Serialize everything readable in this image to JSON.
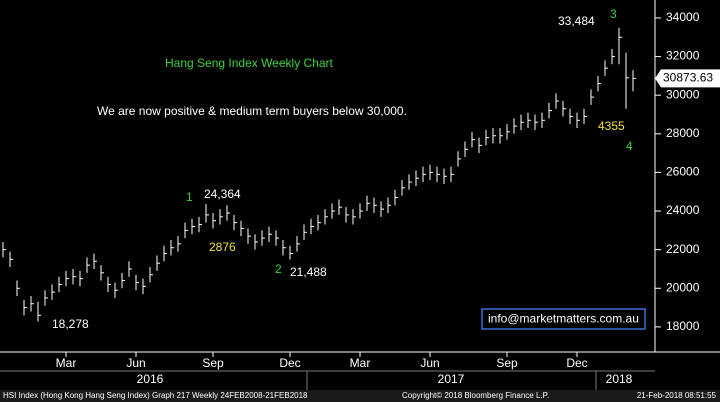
{
  "chart_data": {
    "type": "ohlc",
    "categories": [
      null,
      null,
      null,
      null,
      null,
      null,
      null,
      null,
      null,
      "Mar",
      null,
      null,
      null,
      null,
      null,
      null,
      null,
      null,
      null,
      "Jun",
      null,
      null,
      null,
      null,
      null,
      null,
      null,
      null,
      null,
      null,
      "Sep",
      null,
      null,
      null,
      null,
      null,
      null,
      null,
      null,
      null,
      null,
      "Dec",
      null,
      null,
      null,
      null,
      null,
      null,
      null,
      null,
      null,
      "Mar",
      null,
      null,
      null,
      null,
      null,
      null,
      null,
      null,
      null,
      "Jun",
      null,
      null,
      null,
      null,
      null,
      null,
      null,
      null,
      null,
      null,
      "Sep",
      null,
      null,
      null,
      null,
      null,
      null,
      null,
      null,
      null,
      "Dec",
      null,
      null,
      null,
      null,
      null,
      null,
      null,
      null
    ],
    "year_categories": [
      null,
      null,
      null,
      null,
      null,
      null,
      null,
      null,
      null,
      null,
      null,
      null,
      null,
      null,
      null,
      null,
      null,
      null,
      null,
      null,
      null,
      "2016",
      null,
      null,
      null,
      null,
      null,
      null,
      null,
      null,
      null,
      null,
      null,
      null,
      null,
      null,
      null,
      null,
      null,
      null,
      null,
      null,
      null,
      null,
      null,
      null,
      null,
      null,
      null,
      null,
      null,
      null,
      null,
      null,
      null,
      null,
      null,
      null,
      null,
      null,
      null,
      null,
      null,
      null,
      "2017",
      null,
      null,
      null,
      null,
      null,
      null,
      null,
      null,
      null,
      null,
      null,
      null,
      null,
      null,
      null,
      null,
      null,
      null,
      null,
      null,
      null,
      null,
      null,
      "2018",
      null,
      null
    ],
    "high": [
      22400,
      21900,
      20400,
      19400,
      19600,
      19300,
      19900,
      20200,
      20600,
      20900,
      21000,
      20900,
      21600,
      21800,
      21200,
      20600,
      20300,
      20800,
      21400,
      20700,
      20500,
      21100,
      21700,
      22200,
      22500,
      22700,
      23400,
      23600,
      23700,
      24364,
      23900,
      24100,
      24300,
      23800,
      23500,
      23100,
      22800,
      23000,
      23200,
      23000,
      22500,
      22200,
      22700,
      23300,
      23600,
      23800,
      24100,
      24400,
      24600,
      24200,
      24100,
      24400,
      24800,
      24700,
      24500,
      24700,
      25100,
      25600,
      25900,
      26100,
      26300,
      26400,
      26300,
      26200,
      26300,
      27100,
      27600,
      28100,
      27800,
      28200,
      28300,
      28300,
      28500,
      28800,
      29000,
      29100,
      29000,
      29100,
      29600,
      30100,
      29700,
      29300,
      29100,
      29300,
      30300,
      31000,
      31800,
      32400,
      33484,
      32200,
      31300
    ],
    "low": [
      21600,
      21100,
      19600,
      18600,
      18800,
      18278,
      19100,
      19400,
      19800,
      20100,
      20200,
      20100,
      20800,
      21000,
      20400,
      19800,
      19500,
      20000,
      20600,
      19900,
      19700,
      20300,
      20900,
      21400,
      21700,
      21900,
      22600,
      22800,
      22900,
      23400,
      23100,
      23300,
      23500,
      23000,
      22700,
      22300,
      22000,
      22200,
      22400,
      22200,
      21700,
      21488,
      21900,
      22500,
      22800,
      23000,
      23300,
      23600,
      23800,
      23400,
      23300,
      23600,
      24000,
      23900,
      23700,
      23900,
      24300,
      24800,
      25100,
      25300,
      25500,
      25600,
      25500,
      25400,
      25500,
      26300,
      26800,
      27300,
      27000,
      27400,
      27500,
      27500,
      27700,
      28000,
      28200,
      28300,
      28200,
      28300,
      28800,
      29300,
      28900,
      28500,
      28300,
      28500,
      29500,
      30200,
      31000,
      31600,
      31600,
      29300,
      30200
    ],
    "close": [
      22000,
      21500,
      20000,
      19000,
      19200,
      18600,
      19500,
      19800,
      20200,
      20500,
      20600,
      20500,
      21200,
      21400,
      20800,
      20200,
      19900,
      20400,
      21000,
      20300,
      20100,
      20700,
      21300,
      21800,
      22100,
      22300,
      23000,
      23200,
      23300,
      23800,
      23500,
      23700,
      23900,
      23400,
      23100,
      22700,
      22400,
      22600,
      22800,
      22600,
      22100,
      21800,
      22300,
      22900,
      23200,
      23400,
      23700,
      24000,
      24200,
      23800,
      23700,
      24000,
      24400,
      24300,
      24100,
      24300,
      24700,
      25200,
      25500,
      25700,
      25900,
      26000,
      25900,
      25800,
      25900,
      26700,
      27200,
      27700,
      27400,
      27800,
      27900,
      27900,
      28100,
      28400,
      28600,
      28700,
      28600,
      28700,
      29200,
      29700,
      29300,
      28900,
      28700,
      28900,
      29900,
      30600,
      31400,
      32000,
      33000,
      30900,
      30873.63
    ],
    "color": "#ffffff",
    "ylim": [
      16700,
      34930
    ],
    "yticks": [
      18000,
      20000,
      22000,
      24000,
      26000,
      28000,
      30000,
      32000,
      34000
    ],
    "grid": false,
    "annotations": [
      {
        "text": "Hang Seng Index Weekly Chart",
        "color": "#3cd23c"
      },
      {
        "text": "We are now positive & medium term buyers below 30,000.",
        "color": "#ffffff"
      },
      {
        "text": "1",
        "color": "#3cd23c"
      },
      {
        "text": "24,364",
        "color": "#ffffff"
      },
      {
        "text": "2876",
        "color": "#f0e040"
      },
      {
        "text": "2",
        "color": "#3cd23c"
      },
      {
        "text": "21,488",
        "color": "#ffffff"
      },
      {
        "text": "18,278",
        "color": "#ffffff"
      },
      {
        "text": "33,484",
        "color": "#ffffff"
      },
      {
        "text": "3",
        "color": "#3cd23c"
      },
      {
        "text": "4355",
        "color": "#f0e040"
      },
      {
        "text": "4",
        "color": "#3cd23c"
      }
    ],
    "contact": "info@marketmatters.com.au",
    "footer": {
      "left": "HSI Index (Hong Kong Hang Seng Index) Graph 217  Weekly 24FEB2008-21FEB2018",
      "center": "Copyright© 2018 Bloomberg Finance L.P.",
      "right": "21-Feb-2018 08:51:55"
    }
  }
}
